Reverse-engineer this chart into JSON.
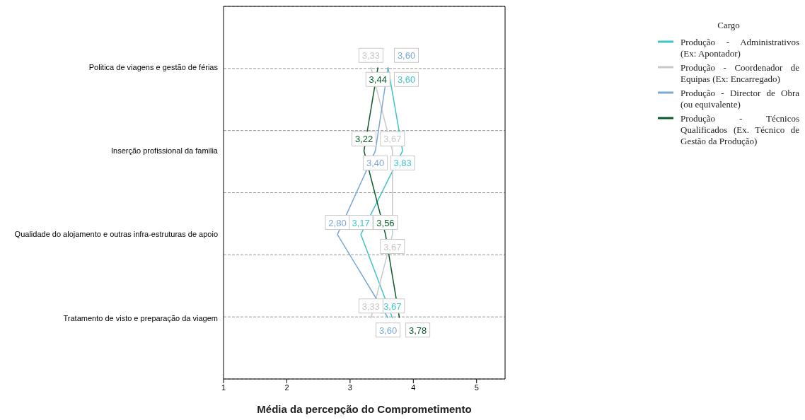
{
  "chart_data": {
    "type": "line",
    "orientation": "horizontal",
    "xlabel": "Média da percepção do Comprometimento",
    "legend_title": "Cargo",
    "categories": [
      "Politica de viagens e gestão de férias",
      "Inserção profissional da familia",
      "Qualidade do alojamento  e outras infra-estruturas de apoio",
      "Tratamento de visto e preparação da viagem"
    ],
    "series": [
      {
        "name": "Produção - Administrativos (Ex: Apontador)",
        "color": "#40c4c8",
        "values": [
          3.6,
          3.83,
          3.17,
          3.67
        ],
        "value_labels": [
          "3,60",
          "3,83",
          "3,17",
          "3,67"
        ]
      },
      {
        "name": "Produção - Coordenador de Equipas (Ex: Encarregado)",
        "color": "#c8c8c8",
        "values": [
          3.33,
          3.67,
          3.67,
          3.33
        ],
        "value_labels": [
          "3,33",
          "3,67",
          "3,67",
          "3,33"
        ]
      },
      {
        "name": "Produção - Director de Obra (ou equivalente)",
        "color": "#78a8d8",
        "values": [
          3.6,
          3.4,
          2.8,
          3.6
        ],
        "value_labels": [
          "3,60",
          "3,40",
          "2,80",
          "3,60"
        ]
      },
      {
        "name": "Produção - Técnicos Qualificados (Ex. Técnico de Gestão da Produção)",
        "color": "#0a5a2a",
        "values": [
          3.44,
          3.22,
          3.56,
          3.78
        ],
        "value_labels": [
          "3,44",
          "3,22",
          "3,56",
          "3,78"
        ]
      }
    ],
    "xlim": [
      1,
      5.45
    ],
    "xticks": [
      1,
      2,
      3,
      4,
      5
    ],
    "grid": "y",
    "legend": "right",
    "line_style": "solid"
  }
}
